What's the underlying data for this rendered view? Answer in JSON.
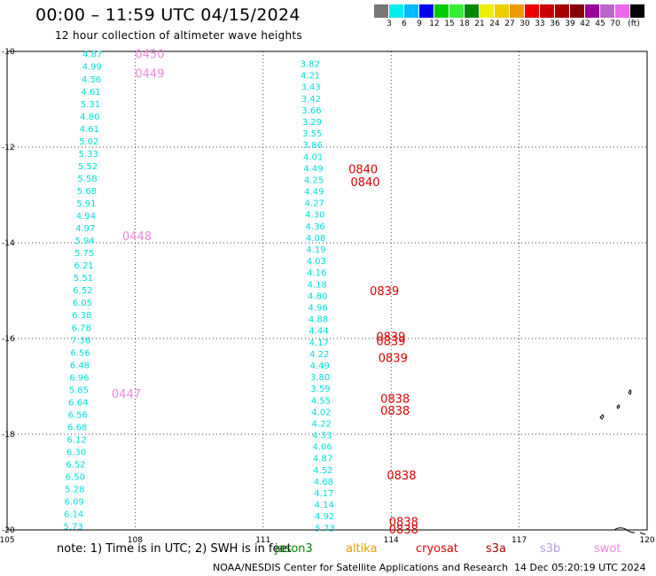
{
  "title": "00:00 – 11:59 UTC 04/15/2024",
  "subtitle": "12 hour collection of altimeter wave heights",
  "colorbar": {
    "colors": [
      "#777777",
      "#00eeee",
      "#00bbff",
      "#0000ee",
      "#00cc00",
      "#33ee33",
      "#008800",
      "#eeee00",
      "#eecc00",
      "#ee9900",
      "#ee0000",
      "#cc0000",
      "#aa0000",
      "#880000",
      "#990099",
      "#bb66cc",
      "#ee66ee",
      "#000000"
    ],
    "labels": [
      "3",
      "6",
      "9",
      "12",
      "15",
      "18",
      "21",
      "24",
      "27",
      "30",
      "33",
      "36",
      "39",
      "42",
      "45",
      "70",
      "(ft)"
    ]
  },
  "map": {
    "lon_range": [
      105,
      120
    ],
    "lat_range": [
      -10,
      -20
    ],
    "x_ticks": [
      "105",
      "108",
      "111",
      "114",
      "117",
      "120"
    ],
    "y_ticks": [
      "-10",
      "-12",
      "-14",
      "-16",
      "-18",
      "-20"
    ],
    "track_color_cyan": "#00dddd",
    "tracks": [
      {
        "lon": 107.0,
        "values": [
          "4.87",
          "4.99",
          "4.56",
          "4.61",
          "5.31",
          "4.80",
          "4.61",
          "5.02",
          "5.33",
          "5.52",
          "5.58",
          "5.68",
          "5.91",
          "4.94",
          "4.97",
          "5.94",
          "5.75",
          "6.21",
          "5.51",
          "6.52",
          "6.05",
          "6.38",
          "6.78",
          "7.36",
          "6.56",
          "6.48",
          "6.96",
          "5.85",
          "6.64",
          "6.56",
          "6.68",
          "6.12",
          "6.30",
          "6.52",
          "6.50",
          "5.28",
          "6.09",
          "6.14",
          "5.73"
        ],
        "lat_start": -10.05,
        "lat_end": -19.92,
        "shift": -0.45
      },
      {
        "lon": 112.1,
        "values": [
          "3.82",
          "4.21",
          "3.43",
          "3.42",
          "3.66",
          "3.29",
          "3.55",
          "3.86",
          "4.01",
          "4.49",
          "4.25",
          "4.49",
          "4.27",
          "4.30",
          "4.36",
          "4.08",
          "4.19",
          "4.03",
          "4.16",
          "4.18",
          "4.80",
          "4.96",
          "4.88",
          "4.44",
          "4.17",
          "4.22",
          "4.49",
          "3.80",
          "3.59",
          "4.55",
          "4.02",
          "4.22",
          "4.33",
          "4.06",
          "4.87",
          "4.52",
          "4.68",
          "4.17",
          "4.14",
          "4.92",
          "5.73"
        ],
        "lat_start": -10.25,
        "lat_end": -19.95,
        "shift": 0.35
      }
    ],
    "time_labels": [
      {
        "text": "0450",
        "lon": 108.0,
        "lat": -10.05,
        "color": "#ee88dd"
      },
      {
        "text": "0449",
        "lon": 108.0,
        "lat": -10.45,
        "color": "#ee88dd"
      },
      {
        "text": "0448",
        "lon": 107.7,
        "lat": -13.85,
        "color": "#ee88dd"
      },
      {
        "text": "0447",
        "lon": 107.45,
        "lat": -17.15,
        "color": "#ee88dd"
      },
      {
        "text": "0840",
        "lon": 113.0,
        "lat": -12.45,
        "color": "#dd0000"
      },
      {
        "text": "0840",
        "lon": 113.05,
        "lat": -12.72,
        "color": "#dd0000"
      },
      {
        "text": "0839",
        "lon": 113.5,
        "lat": -15.0,
        "color": "#dd0000"
      },
      {
        "text": "0839",
        "lon": 113.65,
        "lat": -15.95,
        "color": "#dd0000"
      },
      {
        "text": "0839",
        "lon": 113.65,
        "lat": -16.05,
        "color": "#dd0000"
      },
      {
        "text": "0839",
        "lon": 113.7,
        "lat": -16.4,
        "color": "#dd0000"
      },
      {
        "text": "0838",
        "lon": 113.75,
        "lat": -17.25,
        "color": "#dd0000"
      },
      {
        "text": "0838",
        "lon": 113.75,
        "lat": -17.5,
        "color": "#dd0000"
      },
      {
        "text": "0838",
        "lon": 113.9,
        "lat": -18.85,
        "color": "#dd0000"
      },
      {
        "text": "0838",
        "lon": 113.95,
        "lat": -19.82,
        "color": "#dd0000"
      },
      {
        "text": "0838",
        "lon": 113.95,
        "lat": -19.98,
        "color": "#dd0000"
      }
    ]
  },
  "legend": {
    "note": "note: 1) Time is in UTC; 2) SWH is in feet",
    "jason3": {
      "label": "jason3",
      "color": "#008800"
    },
    "altika": {
      "label": "altika",
      "color": "#ee9900"
    },
    "cryosat": {
      "label": "cryosat",
      "color": "#ee0000"
    },
    "s3a": {
      "label": "s3a",
      "color": "#aa0000"
    },
    "s3b": {
      "label": "s3b",
      "color": "#bb99ee"
    },
    "swot": {
      "label": "swot",
      "color": "#ee88dd"
    }
  },
  "credit": "NOAA/NESDIS Center for Satellite Applications and Research",
  "credit_time": "14 Dec 05:20:19 UTC 2024"
}
